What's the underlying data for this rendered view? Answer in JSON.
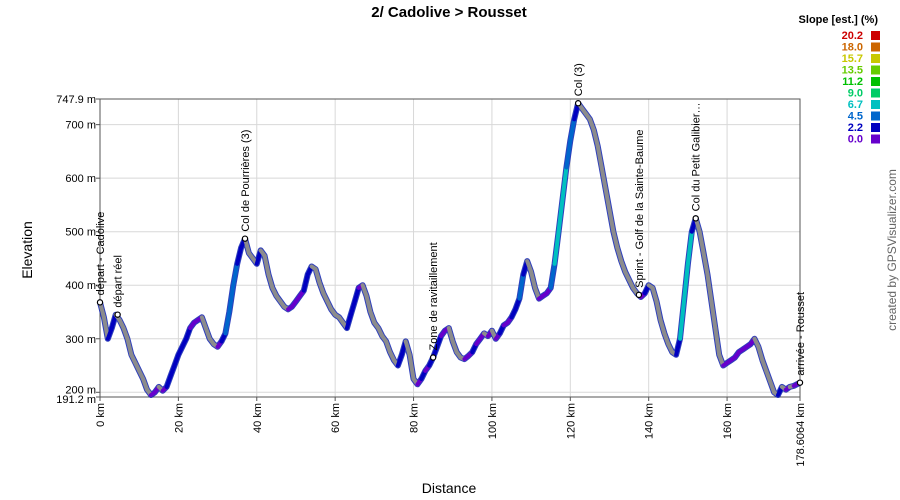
{
  "chart_data": {
    "type": "line",
    "title": "2/ Cadolive > Rousset",
    "xlabel": "Distance",
    "ylabel": "Elevation",
    "credit": "created by GPSVisualizer.com",
    "xlim": [
      0,
      178.6064
    ],
    "ylim": [
      191.2,
      747.9
    ],
    "x_ticks": [
      {
        "value": 0,
        "label": "0 km"
      },
      {
        "value": 20,
        "label": "20 km"
      },
      {
        "value": 40,
        "label": "40 km"
      },
      {
        "value": 60,
        "label": "60 km"
      },
      {
        "value": 80,
        "label": "80 km"
      },
      {
        "value": 100,
        "label": "100 km"
      },
      {
        "value": 120,
        "label": "120 km"
      },
      {
        "value": 140,
        "label": "140 km"
      },
      {
        "value": 160,
        "label": "160 km"
      },
      {
        "value": 178.6064,
        "label": "178.6064 km"
      }
    ],
    "y_ticks": [
      {
        "value": 191.2,
        "label": "191.2 m"
      },
      {
        "value": 200,
        "label": "200 m"
      },
      {
        "value": 300,
        "label": "300 m"
      },
      {
        "value": 400,
        "label": "400 m"
      },
      {
        "value": 500,
        "label": "500 m"
      },
      {
        "value": 600,
        "label": "600 m"
      },
      {
        "value": 700,
        "label": "700 m"
      },
      {
        "value": 747.9,
        "label": "747.9 m"
      }
    ],
    "grid": true,
    "legend": {
      "title": "Slope [est.] (%)",
      "placement": "top-right",
      "items": [
        {
          "label": "20.2",
          "color": "#cc0000"
        },
        {
          "label": "18.0",
          "color": "#cc6600"
        },
        {
          "label": "15.7",
          "color": "#c8c800"
        },
        {
          "label": "13.5",
          "color": "#66cc00"
        },
        {
          "label": "11.2",
          "color": "#00c000"
        },
        {
          "label": "9.0",
          "color": "#00cc66"
        },
        {
          "label": "6.7",
          "color": "#00c0c0"
        },
        {
          "label": "4.5",
          "color": "#0066cc"
        },
        {
          "label": "2.2",
          "color": "#0000c0"
        },
        {
          "label": "0.0",
          "color": "#6600cc"
        }
      ]
    },
    "series": [
      {
        "points": [
          [
            0,
            368
          ],
          [
            1,
            340
          ],
          [
            2,
            300
          ],
          [
            3,
            320
          ],
          [
            4,
            345
          ],
          [
            5,
            335
          ],
          [
            6,
            320
          ],
          [
            7,
            300
          ],
          [
            8,
            270
          ],
          [
            9,
            255
          ],
          [
            10,
            240
          ],
          [
            11,
            225
          ],
          [
            12,
            205
          ],
          [
            13,
            195
          ],
          [
            14,
            200
          ],
          [
            15,
            210
          ],
          [
            16,
            203
          ],
          [
            17,
            210
          ],
          [
            18,
            230
          ],
          [
            19,
            250
          ],
          [
            20,
            270
          ],
          [
            21,
            285
          ],
          [
            22,
            300
          ],
          [
            23,
            320
          ],
          [
            24,
            330
          ],
          [
            25,
            335
          ],
          [
            26,
            340
          ],
          [
            27,
            320
          ],
          [
            28,
            300
          ],
          [
            29,
            290
          ],
          [
            30,
            285
          ],
          [
            31,
            295
          ],
          [
            32,
            310
          ],
          [
            33,
            350
          ],
          [
            34,
            400
          ],
          [
            35,
            440
          ],
          [
            36,
            470
          ],
          [
            37,
            487
          ],
          [
            38,
            460
          ],
          [
            39,
            450
          ],
          [
            40,
            440
          ],
          [
            41,
            465
          ],
          [
            42,
            455
          ],
          [
            43,
            420
          ],
          [
            44,
            395
          ],
          [
            45,
            380
          ],
          [
            46,
            370
          ],
          [
            47,
            360
          ],
          [
            48,
            355
          ],
          [
            49,
            360
          ],
          [
            50,
            370
          ],
          [
            51,
            380
          ],
          [
            52,
            390
          ],
          [
            53,
            420
          ],
          [
            54,
            435
          ],
          [
            55,
            430
          ],
          [
            56,
            405
          ],
          [
            57,
            385
          ],
          [
            58,
            370
          ],
          [
            59,
            355
          ],
          [
            60,
            345
          ],
          [
            61,
            340
          ],
          [
            62,
            330
          ],
          [
            63,
            320
          ],
          [
            64,
            345
          ],
          [
            65,
            370
          ],
          [
            66,
            395
          ],
          [
            67,
            400
          ],
          [
            68,
            380
          ],
          [
            69,
            350
          ],
          [
            70,
            330
          ],
          [
            71,
            320
          ],
          [
            72,
            305
          ],
          [
            73,
            295
          ],
          [
            74,
            275
          ],
          [
            75,
            260
          ],
          [
            76,
            250
          ],
          [
            77,
            270
          ],
          [
            78,
            295
          ],
          [
            79,
            270
          ],
          [
            80,
            225
          ],
          [
            81,
            215
          ],
          [
            82,
            225
          ],
          [
            83,
            240
          ],
          [
            84,
            250
          ],
          [
            85,
            265
          ],
          [
            86,
            285
          ],
          [
            87,
            305
          ],
          [
            88,
            315
          ],
          [
            89,
            320
          ],
          [
            90,
            295
          ],
          [
            91,
            275
          ],
          [
            92,
            265
          ],
          [
            93,
            262
          ],
          [
            94,
            268
          ],
          [
            95,
            275
          ],
          [
            96,
            290
          ],
          [
            97,
            300
          ],
          [
            98,
            310
          ],
          [
            99,
            305
          ],
          [
            100,
            315
          ],
          [
            101,
            300
          ],
          [
            102,
            310
          ],
          [
            103,
            325
          ],
          [
            104,
            330
          ],
          [
            105,
            340
          ],
          [
            106,
            355
          ],
          [
            107,
            375
          ],
          [
            108,
            420
          ],
          [
            109,
            445
          ],
          [
            110,
            425
          ],
          [
            111,
            395
          ],
          [
            112,
            375
          ],
          [
            113,
            380
          ],
          [
            114,
            385
          ],
          [
            115,
            395
          ],
          [
            116,
            440
          ],
          [
            117,
            500
          ],
          [
            118,
            560
          ],
          [
            119,
            620
          ],
          [
            120,
            670
          ],
          [
            121,
            710
          ],
          [
            122,
            740
          ],
          [
            123,
            730
          ],
          [
            124,
            720
          ],
          [
            125,
            710
          ],
          [
            126,
            690
          ],
          [
            127,
            660
          ],
          [
            128,
            620
          ],
          [
            129,
            580
          ],
          [
            130,
            540
          ],
          [
            131,
            500
          ],
          [
            132,
            470
          ],
          [
            133,
            445
          ],
          [
            134,
            425
          ],
          [
            135,
            410
          ],
          [
            136,
            395
          ],
          [
            137,
            385
          ],
          [
            138,
            378
          ],
          [
            139,
            385
          ],
          [
            140,
            400
          ],
          [
            141,
            395
          ],
          [
            142,
            370
          ],
          [
            143,
            335
          ],
          [
            144,
            310
          ],
          [
            145,
            290
          ],
          [
            146,
            275
          ],
          [
            147,
            270
          ],
          [
            148,
            300
          ],
          [
            149,
            370
          ],
          [
            150,
            440
          ],
          [
            151,
            500
          ],
          [
            152,
            525
          ],
          [
            153,
            500
          ],
          [
            154,
            460
          ],
          [
            155,
            420
          ],
          [
            156,
            370
          ],
          [
            157,
            320
          ],
          [
            158,
            270
          ],
          [
            159,
            250
          ],
          [
            160,
            255
          ],
          [
            161,
            260
          ],
          [
            162,
            265
          ],
          [
            163,
            275
          ],
          [
            164,
            280
          ],
          [
            165,
            285
          ],
          [
            166,
            290
          ],
          [
            167,
            300
          ],
          [
            168,
            285
          ],
          [
            169,
            260
          ],
          [
            170,
            240
          ],
          [
            171,
            220
          ],
          [
            172,
            200
          ],
          [
            173,
            195
          ],
          [
            174,
            210
          ],
          [
            175,
            205
          ],
          [
            176,
            210
          ],
          [
            177,
            212
          ],
          [
            178.6064,
            218
          ]
        ]
      }
    ],
    "annotations": [
      {
        "label": "départ - Cadolive",
        "x": 0,
        "y": 368
      },
      {
        "label": "départ réel",
        "x": 4.5,
        "y": 345
      },
      {
        "label": "Col de Pourrières (3)",
        "x": 37,
        "y": 487
      },
      {
        "label": "Zone de ravitaillement",
        "x": 85,
        "y": 265
      },
      {
        "label": "Col (3)",
        "x": 122,
        "y": 740
      },
      {
        "label": "Sprint - Golf de la Sainte-Baume",
        "x": 137.5,
        "y": 382
      },
      {
        "label": "Col du Petit Galibier…",
        "x": 152,
        "y": 525
      },
      {
        "label": "arrivée - Rousset",
        "x": 178.6064,
        "y": 218
      }
    ]
  }
}
